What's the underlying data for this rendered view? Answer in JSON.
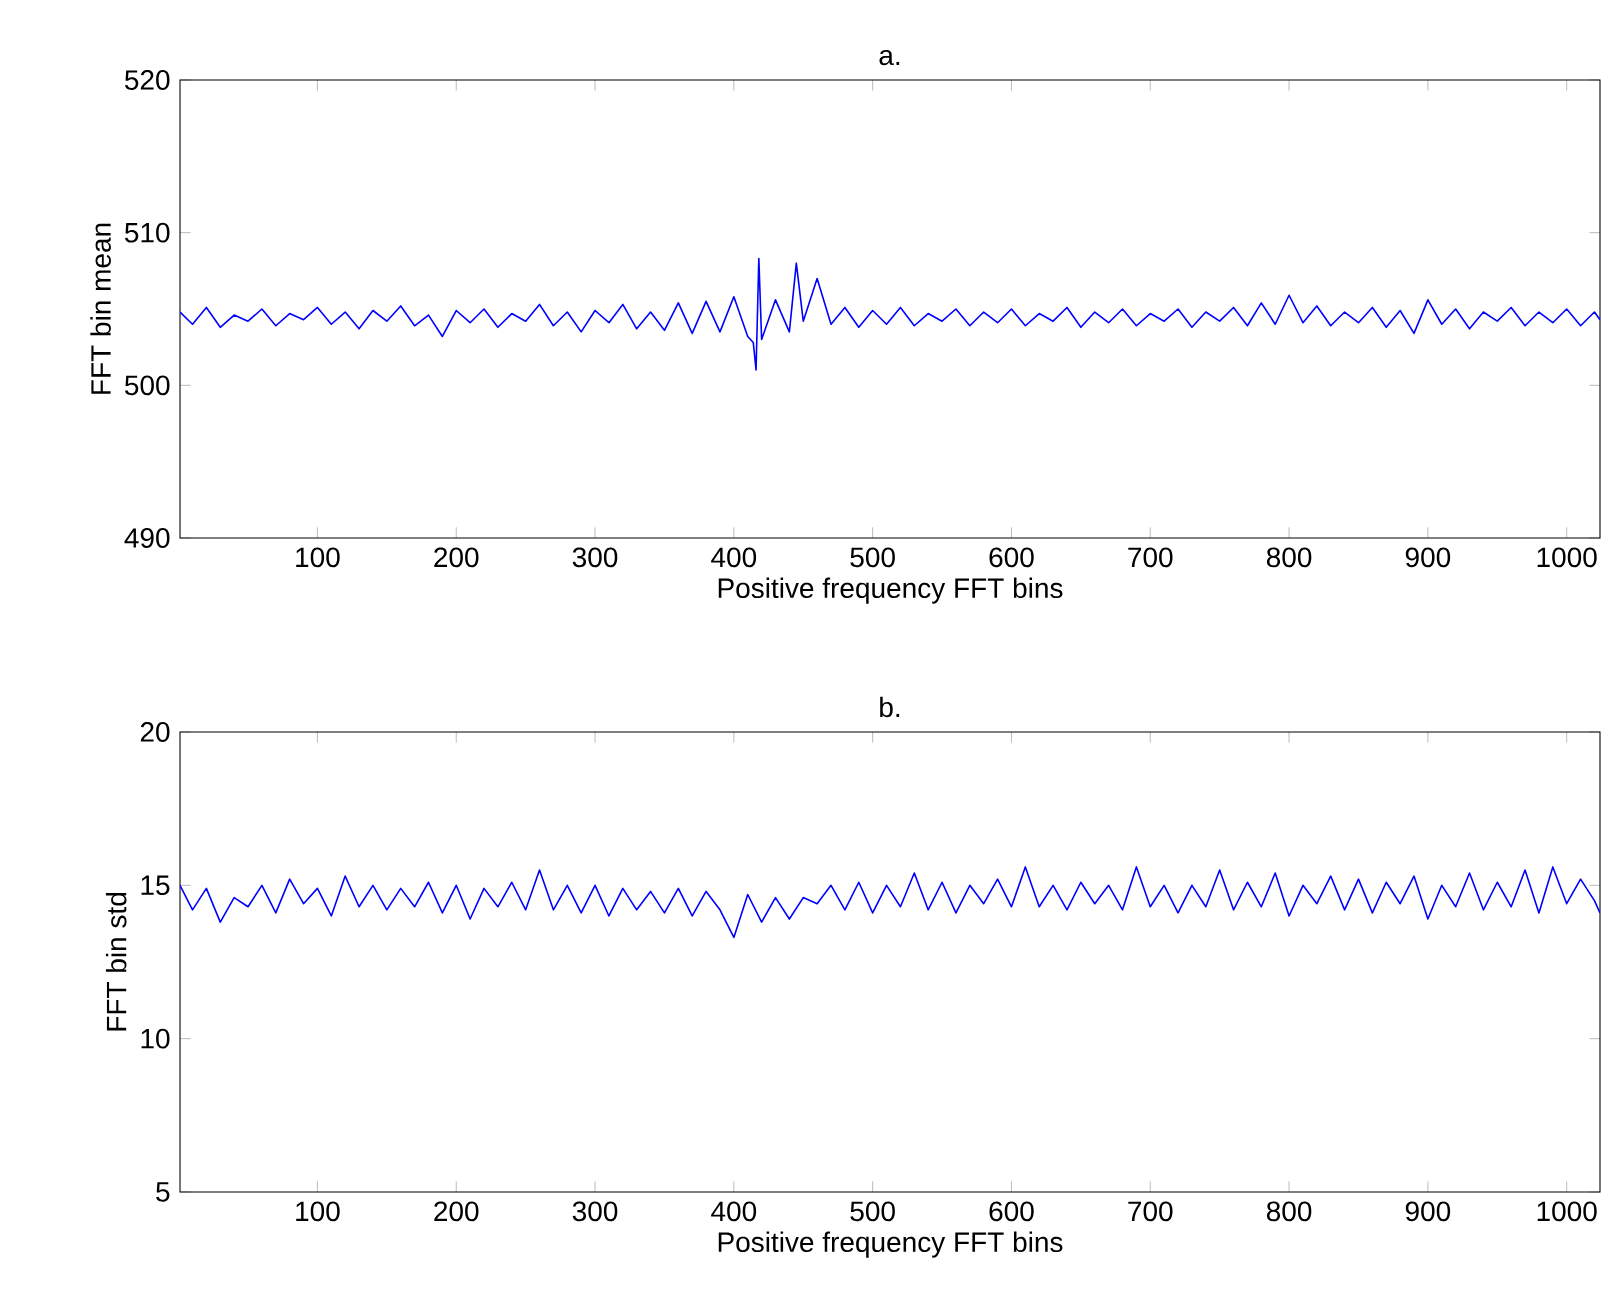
{
  "chart_data": [
    {
      "type": "line",
      "title": "a.",
      "xlabel": "Positive frequency FFT bins",
      "ylabel": "FFT bin mean",
      "xlim": [
        1,
        1024
      ],
      "xticks": [
        100,
        200,
        300,
        400,
        500,
        600,
        700,
        800,
        900,
        1000
      ],
      "ylim": [
        490,
        520
      ],
      "yticks": [
        490,
        500,
        510,
        520
      ],
      "x": [
        1,
        10,
        20,
        30,
        40,
        50,
        60,
        70,
        80,
        90,
        100,
        110,
        120,
        130,
        140,
        150,
        160,
        170,
        180,
        190,
        200,
        210,
        220,
        230,
        240,
        250,
        260,
        270,
        280,
        290,
        300,
        310,
        320,
        330,
        340,
        350,
        360,
        370,
        380,
        390,
        400,
        410,
        414,
        416,
        418,
        420,
        430,
        440,
        445,
        450,
        460,
        470,
        480,
        490,
        500,
        510,
        520,
        530,
        540,
        550,
        560,
        570,
        580,
        590,
        600,
        610,
        620,
        630,
        640,
        650,
        660,
        670,
        680,
        690,
        700,
        710,
        720,
        730,
        740,
        750,
        760,
        770,
        780,
        790,
        800,
        810,
        820,
        830,
        840,
        850,
        860,
        870,
        880,
        890,
        900,
        910,
        920,
        930,
        940,
        950,
        960,
        970,
        980,
        990,
        1000,
        1010,
        1020,
        1024
      ],
      "series": [
        {
          "color": "#0000ff",
          "values": [
            504.8,
            504.0,
            505.1,
            503.8,
            504.6,
            504.2,
            505.0,
            503.9,
            504.7,
            504.3,
            505.1,
            504.0,
            504.8,
            503.7,
            504.9,
            504.2,
            505.2,
            503.9,
            504.6,
            503.2,
            504.9,
            504.1,
            505.0,
            503.8,
            504.7,
            504.2,
            505.3,
            503.9,
            504.8,
            503.5,
            504.9,
            504.1,
            505.3,
            503.7,
            504.8,
            503.6,
            505.4,
            503.4,
            505.5,
            503.5,
            505.8,
            503.2,
            502.8,
            501.0,
            508.3,
            503.0,
            505.6,
            503.5,
            508.0,
            504.2,
            507.0,
            504.0,
            505.1,
            503.8,
            504.9,
            504.0,
            505.1,
            503.9,
            504.7,
            504.2,
            505.0,
            503.9,
            504.8,
            504.1,
            505.0,
            503.9,
            504.7,
            504.2,
            505.1,
            503.8,
            504.8,
            504.1,
            505.0,
            503.9,
            504.7,
            504.2,
            505.0,
            503.8,
            504.8,
            504.2,
            505.1,
            503.9,
            505.4,
            504.0,
            505.9,
            504.1,
            505.2,
            503.9,
            504.8,
            504.1,
            505.1,
            503.8,
            504.9,
            503.4,
            505.6,
            504.0,
            505.0,
            503.7,
            504.8,
            504.2,
            505.1,
            503.9,
            504.8,
            504.1,
            505.0,
            503.9,
            504.8,
            504.3
          ]
        }
      ]
    },
    {
      "type": "line",
      "title": "b.",
      "xlabel": "Positive frequency FFT bins",
      "ylabel": "FFT bin std",
      "xlim": [
        1,
        1024
      ],
      "xticks": [
        100,
        200,
        300,
        400,
        500,
        600,
        700,
        800,
        900,
        1000
      ],
      "ylim": [
        5,
        20
      ],
      "yticks": [
        5,
        10,
        15,
        20
      ],
      "x": [
        1,
        10,
        20,
        30,
        40,
        50,
        60,
        70,
        80,
        90,
        100,
        110,
        120,
        130,
        140,
        150,
        160,
        170,
        180,
        190,
        200,
        210,
        220,
        230,
        240,
        250,
        260,
        270,
        280,
        290,
        300,
        310,
        320,
        330,
        340,
        350,
        360,
        370,
        380,
        390,
        400,
        410,
        420,
        430,
        440,
        450,
        460,
        470,
        480,
        490,
        500,
        510,
        520,
        530,
        540,
        550,
        560,
        570,
        580,
        590,
        600,
        610,
        620,
        630,
        640,
        650,
        660,
        670,
        680,
        690,
        700,
        710,
        720,
        730,
        740,
        750,
        760,
        770,
        780,
        790,
        800,
        810,
        820,
        830,
        840,
        850,
        860,
        870,
        880,
        890,
        900,
        910,
        920,
        930,
        940,
        950,
        960,
        970,
        980,
        990,
        1000,
        1010,
        1020,
        1024
      ],
      "series": [
        {
          "color": "#0000ff",
          "values": [
            15.0,
            14.2,
            14.9,
            13.8,
            14.6,
            14.3,
            15.0,
            14.1,
            15.2,
            14.4,
            14.9,
            14.0,
            15.3,
            14.3,
            15.0,
            14.2,
            14.9,
            14.3,
            15.1,
            14.1,
            15.0,
            13.9,
            14.9,
            14.3,
            15.1,
            14.2,
            15.5,
            14.2,
            15.0,
            14.1,
            15.0,
            14.0,
            14.9,
            14.2,
            14.8,
            14.1,
            14.9,
            14.0,
            14.8,
            14.2,
            13.3,
            14.7,
            13.8,
            14.6,
            13.9,
            14.6,
            14.4,
            15.0,
            14.2,
            15.1,
            14.1,
            15.0,
            14.3,
            15.4,
            14.2,
            15.1,
            14.1,
            15.0,
            14.4,
            15.2,
            14.3,
            15.6,
            14.3,
            15.0,
            14.2,
            15.1,
            14.4,
            15.0,
            14.2,
            15.6,
            14.3,
            15.0,
            14.1,
            15.0,
            14.3,
            15.5,
            14.2,
            15.1,
            14.3,
            15.4,
            14.0,
            15.0,
            14.4,
            15.3,
            14.2,
            15.2,
            14.1,
            15.1,
            14.4,
            15.3,
            13.9,
            15.0,
            14.3,
            15.4,
            14.2,
            15.1,
            14.3,
            15.5,
            14.1,
            15.6,
            14.4,
            15.2,
            14.5,
            14.1
          ]
        }
      ]
    }
  ]
}
